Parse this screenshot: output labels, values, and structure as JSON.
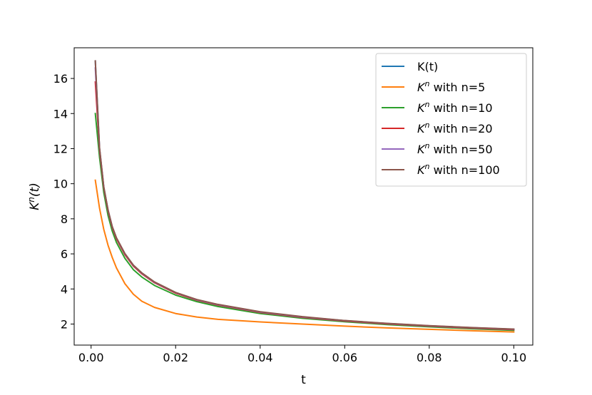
{
  "chart_data": {
    "type": "line",
    "title": "",
    "xlabel": "t",
    "ylabel": "K",
    "ylabel_sup": "n",
    "ylabel_suffix": "(t)",
    "xlim": [
      -0.004,
      0.1045
    ],
    "ylim": [
      0.8,
      17.75
    ],
    "xticks": [
      0.0,
      0.02,
      0.04,
      0.06,
      0.08,
      0.1
    ],
    "xtick_labels": [
      "0.00",
      "0.02",
      "0.04",
      "0.06",
      "0.08",
      "0.10"
    ],
    "yticks": [
      2,
      4,
      6,
      8,
      10,
      12,
      14,
      16
    ],
    "ytick_labels": [
      "2",
      "4",
      "6",
      "8",
      "10",
      "12",
      "14",
      "16"
    ],
    "grid": false,
    "legend_position": "top-right",
    "x": [
      0.001,
      0.002,
      0.003,
      0.004,
      0.005,
      0.006,
      0.008,
      0.01,
      0.012,
      0.015,
      0.02,
      0.025,
      0.03,
      0.04,
      0.05,
      0.06,
      0.07,
      0.08,
      0.09,
      0.1
    ],
    "series": [
      {
        "name": "K(t)",
        "color": "#1f77b4",
        "legend_main": "K(t)",
        "legend_sup": "",
        "legend_suffix": "",
        "values": [
          17.0,
          12.0,
          9.8,
          8.5,
          7.55,
          6.9,
          6.0,
          5.35,
          4.9,
          4.38,
          3.79,
          3.38,
          3.1,
          2.68,
          2.4,
          2.19,
          2.03,
          1.9,
          1.79,
          1.7
        ]
      },
      {
        "name": "K^n with n=5",
        "color": "#ff7f0e",
        "legend_main": "K",
        "legend_sup": "n",
        "legend_suffix": " with n=5",
        "values": [
          10.2,
          8.6,
          7.4,
          6.5,
          5.8,
          5.2,
          4.3,
          3.7,
          3.3,
          2.95,
          2.6,
          2.4,
          2.27,
          2.12,
          2.0,
          1.88,
          1.78,
          1.7,
          1.62,
          1.55
        ]
      },
      {
        "name": "K^n with n=10",
        "color": "#2ca02c",
        "legend_main": "K",
        "legend_sup": "n",
        "legend_suffix": " with n=10",
        "values": [
          14.0,
          11.5,
          9.5,
          8.2,
          7.3,
          6.65,
          5.75,
          5.1,
          4.68,
          4.2,
          3.65,
          3.28,
          3.0,
          2.6,
          2.33,
          2.13,
          1.97,
          1.84,
          1.73,
          1.64
        ]
      },
      {
        "name": "K^n with n=20",
        "color": "#d62728",
        "legend_main": "K",
        "legend_sup": "n",
        "legend_suffix": " with n=20",
        "values": [
          15.8,
          11.9,
          9.75,
          8.45,
          7.5,
          6.85,
          5.95,
          5.3,
          4.86,
          4.35,
          3.76,
          3.36,
          3.08,
          2.66,
          2.38,
          2.17,
          2.01,
          1.88,
          1.77,
          1.68
        ]
      },
      {
        "name": "K^n with n=50",
        "color": "#9467bd",
        "legend_main": "K",
        "legend_sup": "n",
        "legend_suffix": " with n=50",
        "values": [
          16.6,
          12.0,
          9.8,
          8.5,
          7.54,
          6.9,
          6.0,
          5.34,
          4.9,
          4.38,
          3.79,
          3.38,
          3.1,
          2.68,
          2.4,
          2.19,
          2.03,
          1.9,
          1.79,
          1.7
        ]
      },
      {
        "name": "K^n with n=100",
        "color": "#8c564b",
        "legend_main": "K",
        "legend_sup": "n",
        "legend_suffix": " with n=100",
        "values": [
          17.0,
          12.05,
          9.82,
          8.52,
          7.56,
          6.92,
          6.02,
          5.36,
          4.92,
          4.4,
          3.8,
          3.4,
          3.12,
          2.7,
          2.42,
          2.2,
          2.04,
          1.91,
          1.8,
          1.71
        ]
      }
    ]
  }
}
